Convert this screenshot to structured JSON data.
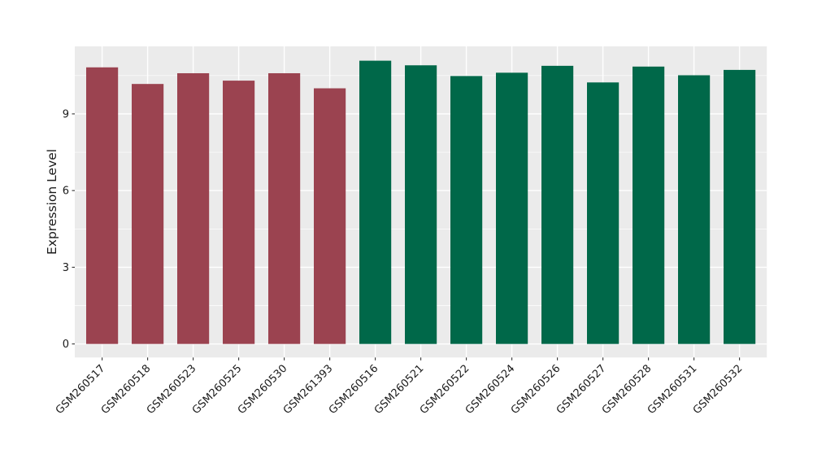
{
  "chart_data": {
    "type": "bar",
    "title": "",
    "xlabel": "",
    "ylabel": "Expression Level",
    "categories": [
      "GSM260517",
      "GSM260518",
      "GSM260523",
      "GSM260525",
      "GSM260530",
      "GSM261393",
      "GSM260516",
      "GSM260521",
      "GSM260522",
      "GSM260524",
      "GSM260526",
      "GSM260527",
      "GSM260528",
      "GSM260531",
      "GSM260532"
    ],
    "values": [
      10.82,
      10.17,
      10.59,
      10.3,
      10.59,
      10.0,
      11.08,
      10.9,
      10.48,
      10.61,
      10.88,
      10.23,
      10.85,
      10.51,
      10.72
    ],
    "groups": [
      "maroon",
      "maroon",
      "maroon",
      "maroon",
      "maroon",
      "maroon",
      "green",
      "green",
      "green",
      "green",
      "green",
      "green",
      "green",
      "green",
      "green"
    ],
    "group_colors": {
      "maroon": "#9b4350",
      "green": "#006849"
    },
    "yticks": [
      0,
      3,
      6,
      9
    ],
    "minor_yticks": [
      1.5,
      4.5,
      7.5,
      10.5
    ],
    "ylim": [
      -0.53,
      11.64
    ],
    "bar_width_fraction": 0.7,
    "panel_bg": "#ebebeb",
    "grid_color": "#ffffff",
    "axis_text_color": "#1a1a1a",
    "tick_mark_color": "#333333",
    "legend": "none",
    "x_label_angle": 45
  }
}
